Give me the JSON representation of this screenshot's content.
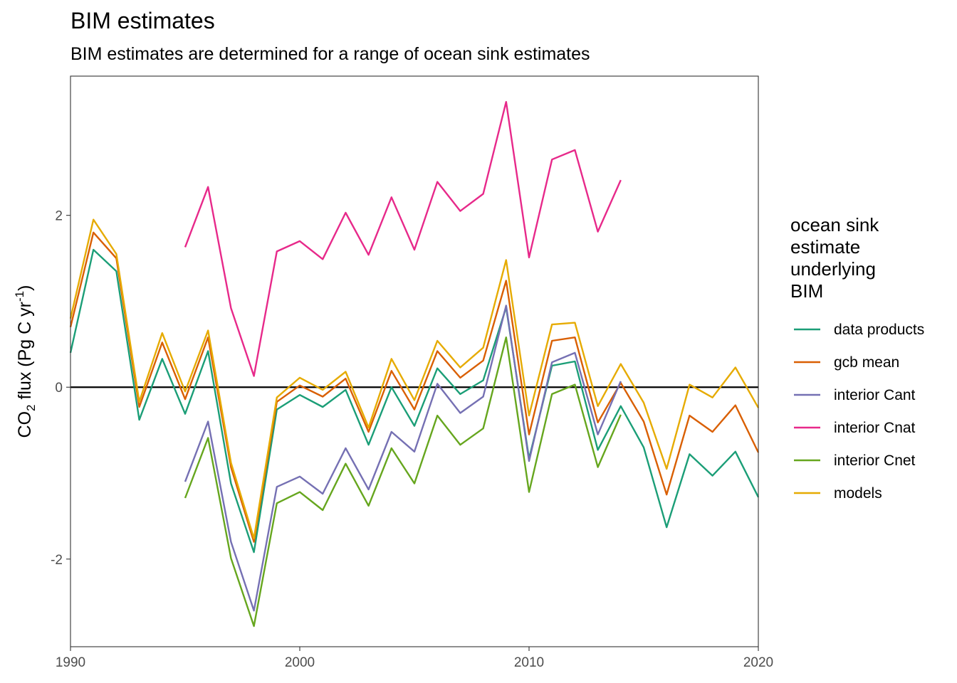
{
  "chart_data": {
    "type": "line",
    "title": "BIM estimates",
    "subtitle": "BIM estimates are determined for a range of ocean sink estimates",
    "ylabel": {
      "base": "CO",
      "sub": "2",
      "mid": " flux (Pg C yr",
      "sup": "-1",
      "end": ")"
    },
    "xlabel": "",
    "xlim": [
      1990,
      2020
    ],
    "ylim": [
      -3.02,
      3.62
    ],
    "x_ticks": [
      "1990",
      "2000",
      "2010",
      "2020"
    ],
    "y_ticks": [
      "-2",
      "0",
      "2"
    ],
    "reference_line_y": 0,
    "grid": false,
    "legend": {
      "title": [
        "ocean sink",
        "estimate",
        "underlying",
        "BIM"
      ],
      "position": "right"
    },
    "series": [
      {
        "name": "data products",
        "color": "#1b9e77",
        "x": [
          1990,
          1991,
          1992,
          1993,
          1994,
          1995,
          1996,
          1997,
          1998,
          1999,
          2000,
          2001,
          2002,
          2003,
          2004,
          2005,
          2006,
          2007,
          2008,
          2009,
          2010,
          2011,
          2012,
          2013,
          2014,
          2015,
          2016,
          2017,
          2018,
          2019,
          2020
        ],
        "y": [
          0.4,
          1.6,
          1.35,
          -0.38,
          0.33,
          -0.31,
          0.42,
          -1.12,
          -1.92,
          -0.26,
          -0.09,
          -0.23,
          -0.03,
          -0.67,
          0.0,
          -0.45,
          0.22,
          -0.08,
          0.08,
          0.93,
          -0.83,
          0.25,
          0.3,
          -0.73,
          -0.22,
          -0.7,
          -1.63,
          -0.78,
          -1.03,
          -0.75,
          -1.28
        ]
      },
      {
        "name": "gcb mean",
        "color": "#d95f02",
        "x": [
          1990,
          1991,
          1992,
          1993,
          1994,
          1995,
          1996,
          1997,
          1998,
          1999,
          2000,
          2001,
          2002,
          2003,
          2004,
          2005,
          2006,
          2007,
          2008,
          2009,
          2010,
          2011,
          2012,
          2013,
          2014,
          2015,
          2016,
          2017,
          2018,
          2019,
          2020
        ],
        "y": [
          0.7,
          1.8,
          1.5,
          -0.23,
          0.52,
          -0.14,
          0.58,
          -0.93,
          -1.8,
          -0.17,
          0.02,
          -0.11,
          0.1,
          -0.52,
          0.19,
          -0.26,
          0.42,
          0.11,
          0.31,
          1.24,
          -0.55,
          0.54,
          0.58,
          -0.41,
          0.05,
          -0.4,
          -1.25,
          -0.33,
          -0.52,
          -0.21,
          -0.76
        ]
      },
      {
        "name": "interior Cant",
        "color": "#7570b3",
        "x": [
          1995,
          1996,
          1997,
          1998,
          1999,
          2000,
          2001,
          2002,
          2003,
          2004,
          2005,
          2006,
          2007,
          2008,
          2009,
          2010,
          2011,
          2012,
          2013,
          2014
        ],
        "y": [
          -1.1,
          -0.4,
          -1.8,
          -2.6,
          -1.16,
          -1.04,
          -1.24,
          -0.71,
          -1.19,
          -0.52,
          -0.75,
          0.04,
          -0.3,
          -0.11,
          0.95,
          -0.86,
          0.29,
          0.4,
          -0.55,
          0.07
        ]
      },
      {
        "name": "interior Cnat",
        "color": "#e7298a",
        "x": [
          1995,
          1996,
          1997,
          1998,
          1999,
          2000,
          2001,
          2002,
          2003,
          2004,
          2005,
          2006,
          2007,
          2008,
          2009,
          2010,
          2011,
          2012,
          2013,
          2014
        ],
        "y": [
          1.63,
          2.33,
          0.92,
          0.13,
          1.58,
          1.7,
          1.49,
          2.03,
          1.54,
          2.21,
          1.6,
          2.39,
          2.05,
          2.25,
          3.32,
          1.51,
          2.65,
          2.76,
          1.81,
          2.41
        ]
      },
      {
        "name": "interior Cnet",
        "color": "#66a61e",
        "x": [
          1995,
          1996,
          1997,
          1998,
          1999,
          2000,
          2001,
          2002,
          2003,
          2004,
          2005,
          2006,
          2007,
          2008,
          2009,
          2010,
          2011,
          2012,
          2013,
          2014
        ],
        "y": [
          -1.29,
          -0.59,
          -1.99,
          -2.78,
          -1.35,
          -1.22,
          -1.43,
          -0.89,
          -1.38,
          -0.71,
          -1.12,
          -0.33,
          -0.67,
          -0.48,
          0.58,
          -1.22,
          -0.08,
          0.03,
          -0.93,
          -0.32
        ]
      },
      {
        "name": "models",
        "color": "#e6ab02",
        "x": [
          1990,
          1991,
          1992,
          1993,
          1994,
          1995,
          1996,
          1997,
          1998,
          1999,
          2000,
          2001,
          2002,
          2003,
          2004,
          2005,
          2006,
          2007,
          2008,
          2009,
          2010,
          2011,
          2012,
          2013,
          2014,
          2015,
          2016,
          2017,
          2018,
          2019,
          2020
        ],
        "y": [
          0.8,
          1.95,
          1.55,
          -0.17,
          0.63,
          -0.05,
          0.66,
          -0.88,
          -1.76,
          -0.12,
          0.11,
          -0.03,
          0.18,
          -0.47,
          0.33,
          -0.15,
          0.54,
          0.23,
          0.46,
          1.48,
          -0.33,
          0.73,
          0.75,
          -0.22,
          0.27,
          -0.18,
          -0.95,
          0.03,
          -0.12,
          0.23,
          -0.24
        ]
      }
    ]
  }
}
